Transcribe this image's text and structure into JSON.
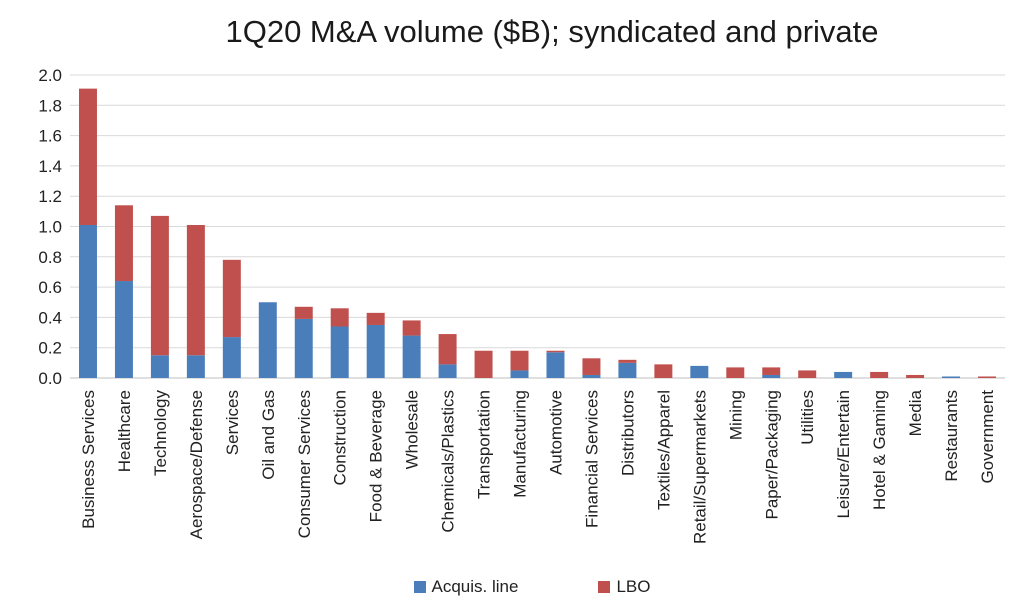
{
  "chart_data": {
    "type": "bar",
    "stacked": true,
    "title": "1Q20 M&A volume ($B); syndicated and private",
    "xlabel": "",
    "ylabel": "",
    "ylim": [
      0,
      2.0
    ],
    "yticks": [
      "0.0",
      "0.2",
      "0.4",
      "0.6",
      "0.8",
      "1.0",
      "1.2",
      "1.4",
      "1.6",
      "1.8",
      "2.0"
    ],
    "grid": true,
    "legend_position": "bottom",
    "categories": [
      "Business Services",
      "Healthcare",
      "Technology",
      "Aerospace/Defense",
      "Services",
      "Oil and Gas",
      "Consumer Services",
      "Construction",
      "Food & Beverage",
      "Wholesale",
      "Chemicals/Plastics",
      "Transportation",
      "Manufacturing",
      "Automotive",
      "Financial Services",
      "Distributors",
      "Textiles/Apparel",
      "Retail/Supermarkets",
      "Mining",
      "Paper/Packaging",
      "Utilities",
      "Leisure/Entertain",
      "Hotel & Gaming",
      "Media",
      "Restaurants",
      "Government"
    ],
    "series": [
      {
        "name": "Acquis. line",
        "color": "#4a7ebb",
        "values": [
          1.01,
          0.64,
          0.15,
          0.15,
          0.27,
          0.5,
          0.39,
          0.34,
          0.35,
          0.28,
          0.09,
          0.0,
          0.05,
          0.17,
          0.02,
          0.1,
          0.0,
          0.08,
          0.0,
          0.02,
          0.0,
          0.04,
          0.0,
          0.0,
          0.01,
          0.0
        ]
      },
      {
        "name": "LBO",
        "color": "#c0504d",
        "values": [
          0.9,
          0.5,
          0.92,
          0.86,
          0.51,
          0.0,
          0.08,
          0.12,
          0.08,
          0.1,
          0.2,
          0.18,
          0.13,
          0.01,
          0.11,
          0.02,
          0.09,
          0.0,
          0.07,
          0.05,
          0.05,
          0.0,
          0.04,
          0.02,
          0.0,
          0.01
        ]
      }
    ]
  }
}
